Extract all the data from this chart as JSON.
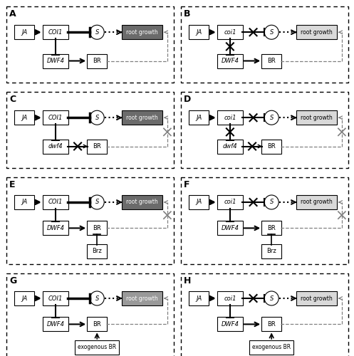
{
  "panels": [
    {
      "label": "A",
      "col": 0,
      "row": 0,
      "coi_label": "COI1",
      "dwf4_label": "DWF4",
      "coi_cross": false,
      "dwf4_cross": false,
      "dwf4_br_cross": false,
      "br_root_cross": false,
      "root_gray": 0.42,
      "brz": false,
      "exobr": false
    },
    {
      "label": "B",
      "col": 1,
      "row": 0,
      "coi_label": "coi1",
      "dwf4_label": "DWF4",
      "coi_cross": true,
      "dwf4_cross": true,
      "dwf4_br_cross": false,
      "br_root_cross": false,
      "root_gray": 0.85,
      "brz": false,
      "exobr": false
    },
    {
      "label": "C",
      "col": 0,
      "row": 1,
      "coi_label": "COI1",
      "dwf4_label": "dwf4",
      "coi_cross": false,
      "dwf4_cross": false,
      "dwf4_br_cross": true,
      "br_root_cross": true,
      "root_gray": 0.42,
      "brz": false,
      "exobr": false
    },
    {
      "label": "D",
      "col": 1,
      "row": 1,
      "coi_label": "coi1",
      "dwf4_label": "dwf4",
      "coi_cross": true,
      "dwf4_cross": true,
      "dwf4_br_cross": true,
      "br_root_cross": true,
      "root_gray": 0.85,
      "brz": false,
      "exobr": false
    },
    {
      "label": "E",
      "col": 0,
      "row": 2,
      "coi_label": "COI1",
      "dwf4_label": "DWF4",
      "coi_cross": false,
      "dwf4_cross": false,
      "dwf4_br_cross": false,
      "br_root_cross": true,
      "root_gray": 0.42,
      "brz": true,
      "exobr": false
    },
    {
      "label": "F",
      "col": 1,
      "row": 2,
      "coi_label": "coi1",
      "dwf4_label": "DWF4",
      "coi_cross": true,
      "dwf4_cross": false,
      "dwf4_br_cross": false,
      "br_root_cross": true,
      "root_gray": 0.85,
      "brz": true,
      "exobr": false
    },
    {
      "label": "G",
      "col": 0,
      "row": 3,
      "coi_label": "COI1",
      "dwf4_label": "DWF4",
      "coi_cross": false,
      "dwf4_cross": false,
      "dwf4_br_cross": false,
      "br_root_cross": false,
      "root_gray": 0.6,
      "brz": false,
      "exobr": true
    },
    {
      "label": "H",
      "col": 1,
      "row": 3,
      "coi_label": "coi1",
      "dwf4_label": "DWF4",
      "coi_cross": true,
      "dwf4_cross": false,
      "dwf4_br_cross": false,
      "br_root_cross": false,
      "root_gray": 0.85,
      "brz": false,
      "exobr": true
    }
  ]
}
